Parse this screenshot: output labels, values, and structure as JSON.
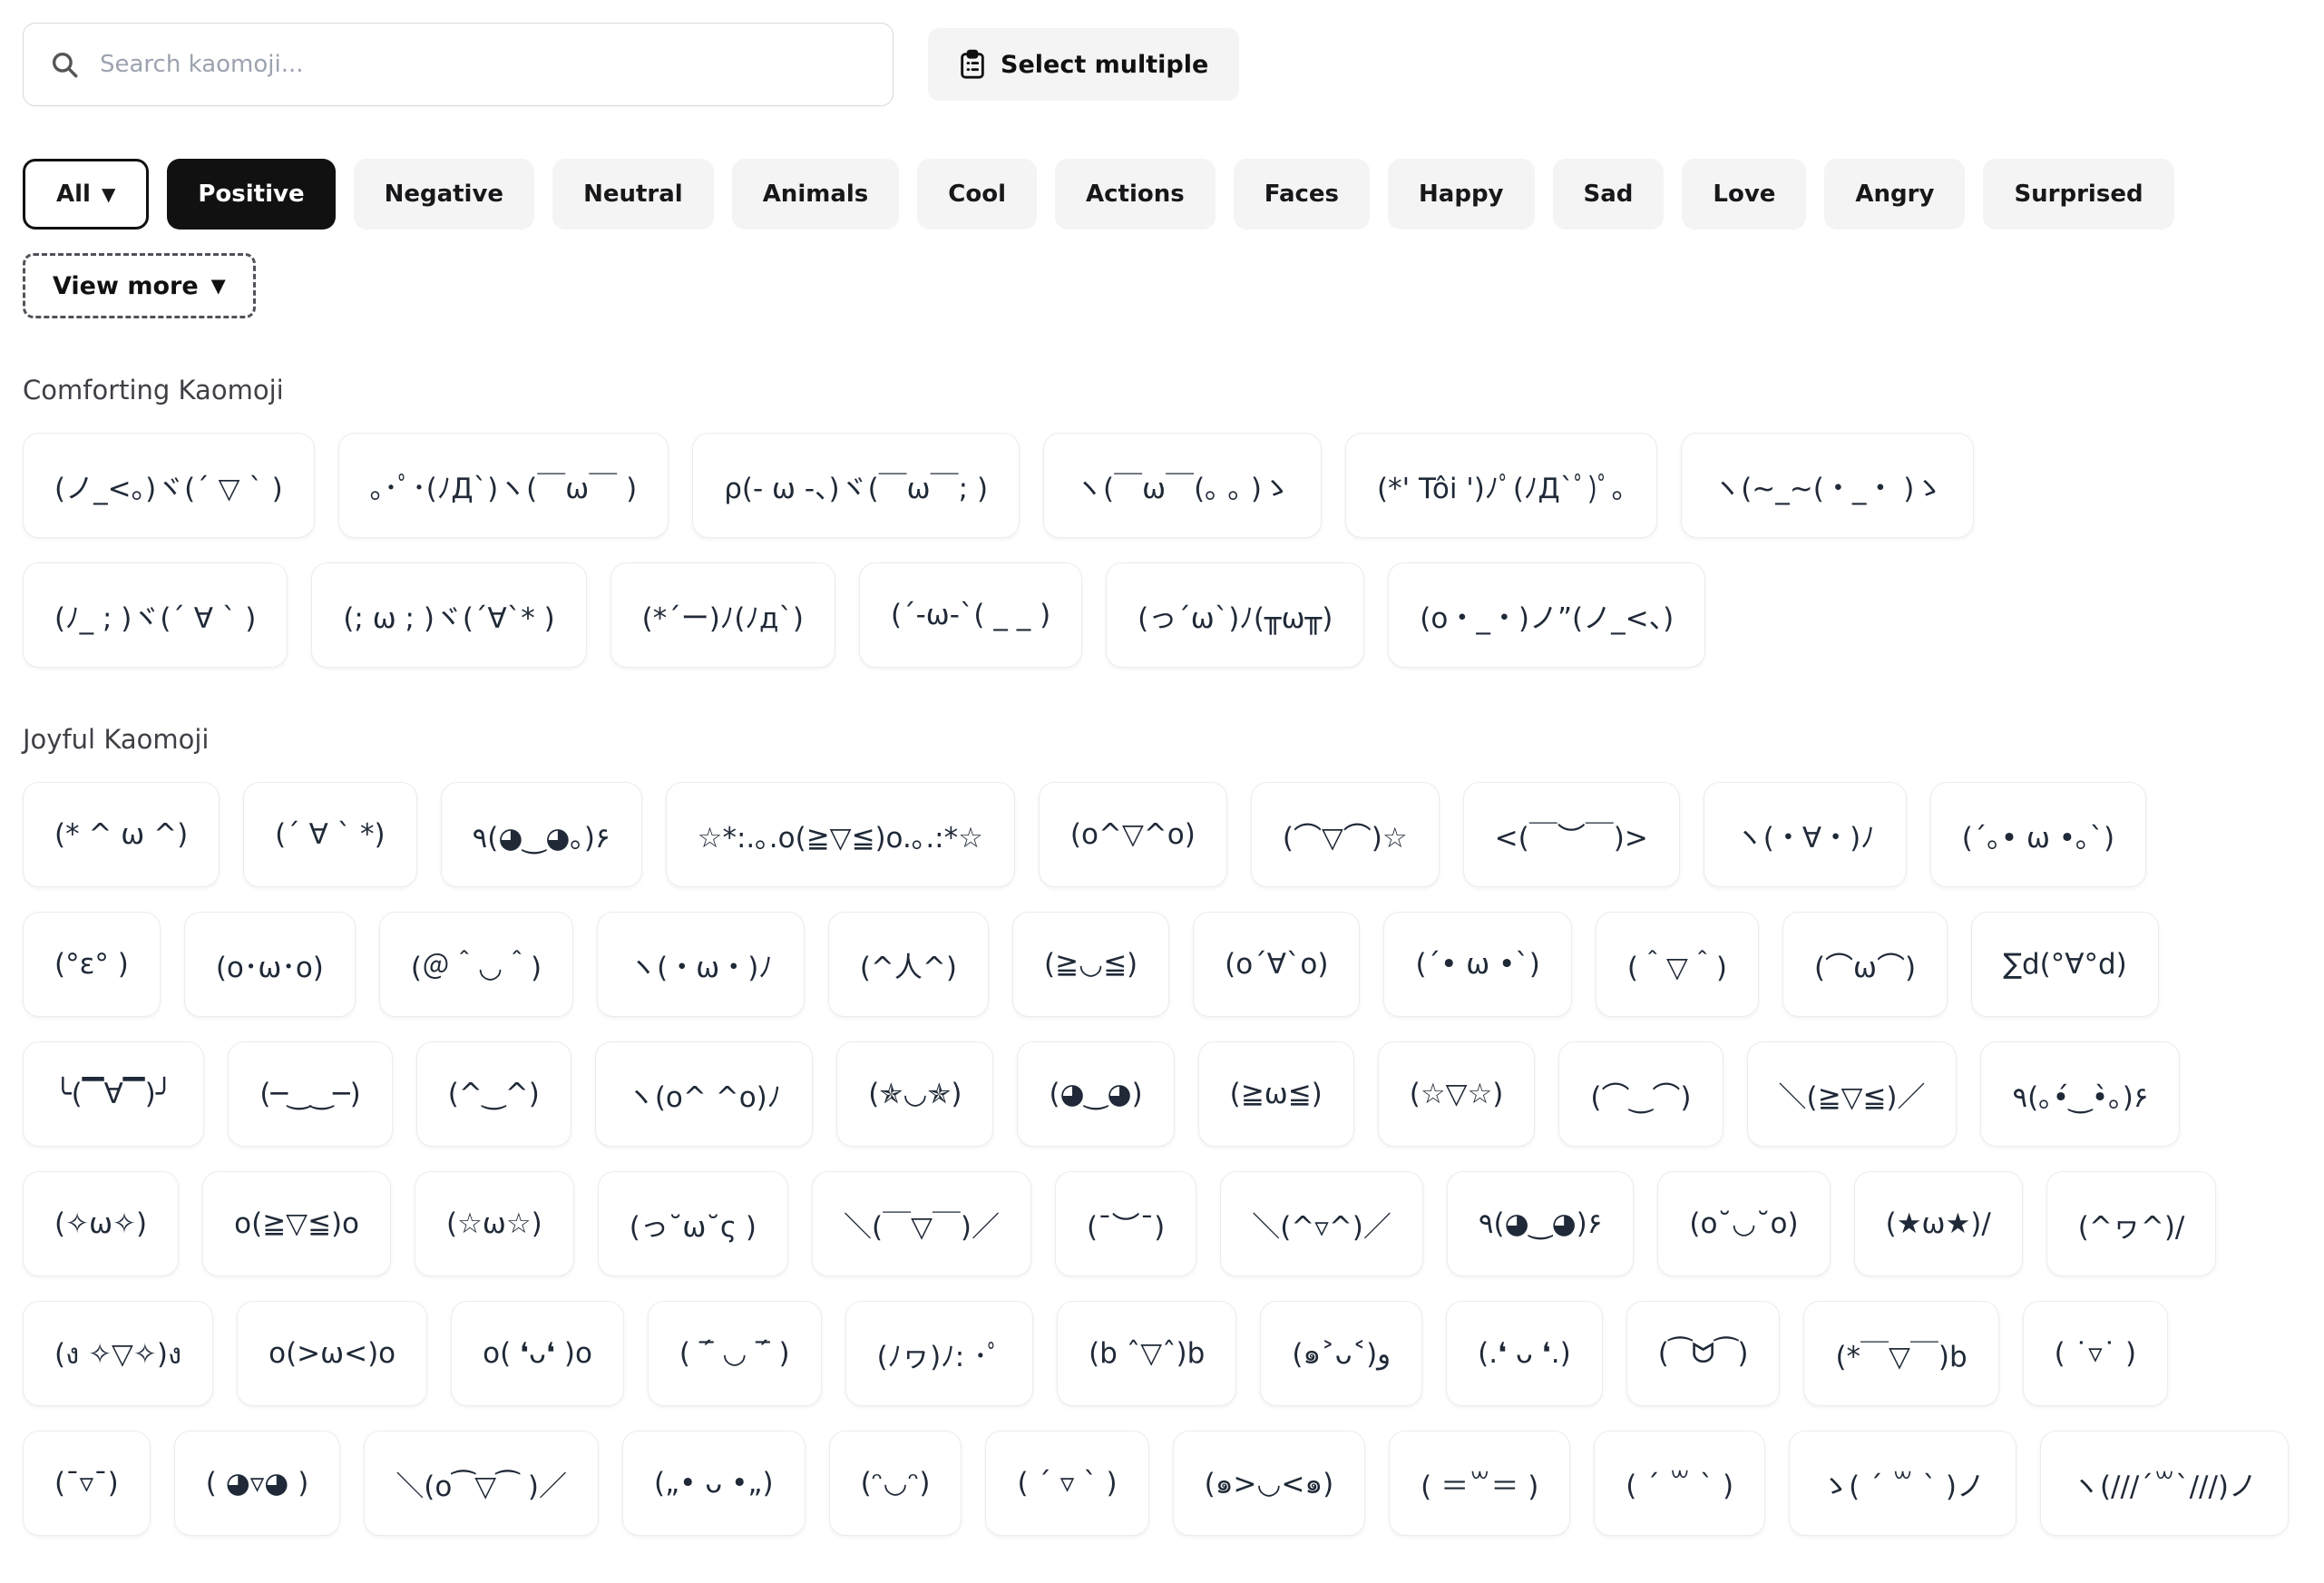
{
  "search": {
    "placeholder": "Search kaomoji..."
  },
  "toolbar": {
    "select_multiple_label": "Select multiple"
  },
  "filters": {
    "all_chip": {
      "label": "All",
      "caret": "▼"
    },
    "chips": [
      "Positive",
      "Negative",
      "Neutral",
      "Animals",
      "Cool",
      "Actions",
      "Faces",
      "Happy",
      "Sad",
      "Love",
      "Angry",
      "Surprised"
    ],
    "active_chip": "Positive",
    "view_more": {
      "label": "View more",
      "caret": "▼"
    }
  },
  "sections": [
    {
      "title": "Comforting Kaomoji",
      "rows": [
        [
          "(ノ_<。)ヾ(´ ▽ ` )",
          "｡･ﾟ･(ﾉД`)ヽ(￣ω￣ )",
          "ρ(- ω -、)ヾ(￣ω￣; )",
          "ヽ(￣ω￣(｡ ｡ )ゝ",
          "(*' Tôi ')ﾉﾟ(ﾉД`ﾟ)ﾟ｡",
          "ヽ(~_~(・_・ )ゝ"
        ],
        [
          "(ﾉ_ ; )ヾ(´ ∀ ` )",
          "(; ω ; )ヾ(´∀`* )",
          "(*´ー)ﾉ(ﾉд`)",
          "(´-ω-`( _ _ )",
          "(っ´ω`)ﾉ(╥ω╥)",
          "(o・_・)ノ”(ノ_<、)"
        ]
      ]
    },
    {
      "title": "Joyful Kaomoji",
      "rows": [
        [
          "(* ^ ω ^)",
          "(´ ∀ ` *)",
          "٩(◕‿◕｡)۶",
          "☆*:.｡.o(≧▽≦)o.｡.:*☆",
          "(o^▽^o)",
          "(⌒▽⌒)☆",
          "<(￣︶￣)>",
          "ヽ(・∀・)ﾉ",
          "(´｡• ω •｡`)"
        ],
        [
          "(°ε° )",
          "(o･ω･o)",
          "(＠＾◡＾)",
          "ヽ(・ω・)ﾉ",
          "(^人^)",
          "(≧◡≦)",
          "(o´∀`o)",
          "(´• ω •`)",
          "(＾▽＾)",
          "(⌒ω⌒)",
          "∑d(°∀°d)"
        ],
        [
          "╰(▔∀▔)╯",
          "(─‿‿─)",
          "(^‿^)",
          "ヽ(o^ ^o)ﾉ",
          "(✯◡✯)",
          "(◕‿◕)",
          "(≧ω≦)",
          "(☆▽☆)",
          "(⌒‿⌒)",
          "＼(≧▽≦)／",
          "٩(｡•́‿•̀｡)۶"
        ],
        [
          "(✧ω✧)",
          "o(≧▽≦)o",
          "(☆ω☆)",
          "(っ˘ω˘ς )",
          "＼(￣▽￣)／",
          "(¯︶¯)",
          "＼(^▿^)／",
          "٩(◕‿◕)۶",
          "(o˘◡˘o)",
          "(★ω★)/",
          "(^ヮ^)/"
        ],
        [
          "(ง ✧▽✧)ง",
          "o(>ω<)o",
          "o( ❛ᴗ❛ )o",
          "( ‾́ ◡ ‾́ )",
          "(ﾉヮ)ﾉ: ･ﾟ",
          "(b ˆ▽ˆ)b",
          "(๑˃ᴗ˂)و",
          "(.❛ ᴗ ❛.)",
          "(⁀ᗢ⁀)",
          "(*￣▽￣)b",
          "( ˙▿˙ )"
        ],
        [
          "(¯▿¯)",
          "( ◕▿◕ )",
          "＼(o⁀▽⁀ )／",
          "(„• ᴗ •„)",
          "(ᵔ◡ᵔ)",
          "( ´ ▿ ` )",
          "(๑>◡<๑)",
          "( ＝꒳＝ )",
          "( ´ ꒳ ` )",
          "ゝ( ´ ꒳ ` )ノ",
          "ヽ(///´꒳`///)ノ"
        ]
      ]
    }
  ]
}
